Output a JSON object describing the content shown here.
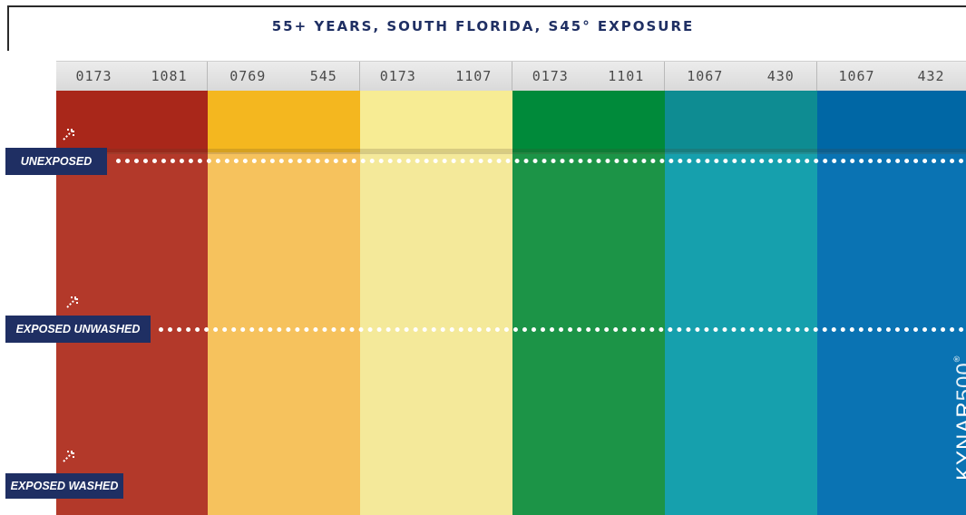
{
  "title": "55+ YEARS, SOUTH FLORIDA, S45° EXPOSURE",
  "swatches": [
    {
      "code_a": "0173",
      "code_b": "1081",
      "color_top": "#a9271a",
      "color_main": "#b3392a"
    },
    {
      "code_a": "0769",
      "code_b": "545",
      "color_top": "#f4b71f",
      "color_main": "#f6c25d"
    },
    {
      "code_a": "0173",
      "code_b": "1107",
      "color_top": "#f7ec94",
      "color_main": "#f4e99a"
    },
    {
      "code_a": "0173",
      "code_b": "1101",
      "color_top": "#008a3a",
      "color_main": "#1c9447"
    },
    {
      "code_a": "1067",
      "code_b": "430",
      "color_top": "#0e8c92",
      "color_main": "#16a0ad"
    },
    {
      "code_a": "1067",
      "code_b": "432",
      "color_top": "#0067a5",
      "color_main": "#0a73b3"
    }
  ],
  "labels": {
    "unexposed": "UNEXPOSED",
    "exposed_unwashed": "EXPOSED UNWASHED",
    "exposed_washed": "EXPOSED WASHED"
  },
  "logo": {
    "brand": "KYNAR",
    "suffix": "500",
    "mark": "®"
  },
  "colors": {
    "label_bg": "#1f2f63",
    "title": "#1f2f63",
    "dots": "#ffffff"
  },
  "icons": {
    "marker": "arrow-marker-icon"
  }
}
